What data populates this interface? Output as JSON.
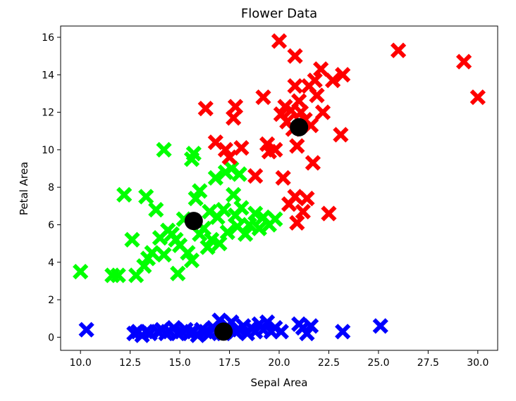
{
  "chart_data": {
    "type": "scatter",
    "title": "Flower Data",
    "xlabel": "Sepal Area",
    "ylabel": "Petal Area",
    "xlim": [
      9.0,
      31.0
    ],
    "ylim": [
      -0.7,
      16.6
    ],
    "grid": false,
    "x_ticks": [
      10.0,
      12.5,
      15.0,
      17.5,
      20.0,
      22.5,
      25.0,
      27.5,
      30.0
    ],
    "x_tick_labels": [
      "10.0",
      "12.5",
      "15.0",
      "17.5",
      "20.0",
      "22.5",
      "25.0",
      "27.5",
      "30.0"
    ],
    "y_ticks": [
      0,
      2,
      4,
      6,
      8,
      10,
      12,
      14,
      16
    ],
    "y_tick_labels": [
      "0",
      "2",
      "4",
      "6",
      "8",
      "10",
      "12",
      "14",
      "16"
    ],
    "colors": {
      "red": "#ff0000",
      "green": "#00ff00",
      "blue": "#0000ff",
      "centroid": "#000000",
      "axes": "#000000"
    },
    "series": [
      {
        "marker": "x",
        "color": "#0000ff",
        "points": [
          [
            10.3,
            0.4
          ],
          [
            12.7,
            0.2
          ],
          [
            12.9,
            0.3
          ],
          [
            13.1,
            0.1
          ],
          [
            13.3,
            0.3
          ],
          [
            13.5,
            0.2
          ],
          [
            13.9,
            0.3
          ],
          [
            14.1,
            0.4
          ],
          [
            14.3,
            0.2
          ],
          [
            14.5,
            0.3
          ],
          [
            14.7,
            0.5
          ],
          [
            14.9,
            0.2
          ],
          [
            15.1,
            0.3
          ],
          [
            15.3,
            0.4
          ],
          [
            15.5,
            0.2
          ],
          [
            15.7,
            0.3
          ],
          [
            15.9,
            0.1
          ],
          [
            16.1,
            0.4
          ],
          [
            16.3,
            0.3
          ],
          [
            16.5,
            0.2
          ],
          [
            16.7,
            0.5
          ],
          [
            16.9,
            0.3
          ],
          [
            17.0,
            0.9
          ],
          [
            17.2,
            0.2
          ],
          [
            17.4,
            0.6
          ],
          [
            17.6,
            0.8
          ],
          [
            17.8,
            0.3
          ],
          [
            18.0,
            0.4
          ],
          [
            18.2,
            0.6
          ],
          [
            18.4,
            0.2
          ],
          [
            18.6,
            0.5
          ],
          [
            18.8,
            0.3
          ],
          [
            19.0,
            0.7
          ],
          [
            19.2,
            0.4
          ],
          [
            19.4,
            0.8
          ],
          [
            19.6,
            0.3
          ],
          [
            19.8,
            0.5
          ],
          [
            20.1,
            0.3
          ],
          [
            21.0,
            0.7
          ],
          [
            21.2,
            0.5
          ],
          [
            21.4,
            0.2
          ],
          [
            21.6,
            0.6
          ],
          [
            23.2,
            0.3
          ],
          [
            25.1,
            0.6
          ]
        ]
      },
      {
        "marker": "x",
        "color": "#00ff00",
        "points": [
          [
            10.0,
            3.5
          ],
          [
            11.6,
            3.3
          ],
          [
            11.9,
            3.3
          ],
          [
            12.2,
            7.6
          ],
          [
            12.6,
            5.2
          ],
          [
            12.8,
            3.3
          ],
          [
            13.2,
            3.8
          ],
          [
            13.3,
            7.5
          ],
          [
            13.4,
            4.2
          ],
          [
            13.6,
            4.5
          ],
          [
            13.8,
            6.8
          ],
          [
            14.0,
            5.3
          ],
          [
            14.2,
            10.0
          ],
          [
            14.2,
            4.4
          ],
          [
            14.4,
            5.7
          ],
          [
            14.6,
            5.5
          ],
          [
            14.8,
            5.2
          ],
          [
            14.9,
            3.4
          ],
          [
            15.0,
            4.9
          ],
          [
            15.2,
            6.3
          ],
          [
            15.4,
            4.5
          ],
          [
            15.6,
            4.1
          ],
          [
            15.6,
            9.5
          ],
          [
            15.7,
            9.8
          ],
          [
            15.8,
            7.4
          ],
          [
            16.0,
            7.8
          ],
          [
            16.0,
            5.5
          ],
          [
            16.2,
            5.8
          ],
          [
            16.4,
            4.8
          ],
          [
            16.5,
            6.7
          ],
          [
            16.6,
            5.2
          ],
          [
            16.8,
            8.5
          ],
          [
            16.9,
            6.4
          ],
          [
            17.0,
            5.0
          ],
          [
            17.2,
            6.8
          ],
          [
            17.3,
            8.8
          ],
          [
            17.4,
            5.6
          ],
          [
            17.6,
            9.0
          ],
          [
            17.7,
            7.6
          ],
          [
            17.8,
            6.5
          ],
          [
            17.9,
            5.9
          ],
          [
            18.0,
            8.7
          ],
          [
            18.1,
            6.9
          ],
          [
            18.3,
            5.5
          ],
          [
            18.5,
            6.0
          ],
          [
            18.8,
            6.6
          ],
          [
            19.0,
            5.8
          ],
          [
            19.2,
            6.4
          ],
          [
            19.5,
            6.0
          ],
          [
            19.8,
            6.3
          ]
        ]
      },
      {
        "marker": "x",
        "color": "#ff0000",
        "points": [
          [
            16.3,
            12.2
          ],
          [
            16.8,
            10.4
          ],
          [
            17.3,
            10.0
          ],
          [
            17.5,
            9.6
          ],
          [
            17.7,
            11.7
          ],
          [
            17.8,
            12.3
          ],
          [
            18.1,
            10.1
          ],
          [
            18.8,
            8.6
          ],
          [
            19.2,
            12.8
          ],
          [
            19.4,
            10.3
          ],
          [
            19.5,
            9.9
          ],
          [
            19.8,
            10.0
          ],
          [
            20.0,
            15.8
          ],
          [
            20.1,
            11.9
          ],
          [
            20.2,
            8.5
          ],
          [
            20.3,
            12.3
          ],
          [
            20.4,
            11.5
          ],
          [
            20.5,
            7.1
          ],
          [
            20.6,
            12.1
          ],
          [
            20.7,
            11.1
          ],
          [
            20.8,
            15.0
          ],
          [
            20.8,
            13.4
          ],
          [
            20.8,
            7.5
          ],
          [
            20.9,
            10.2
          ],
          [
            20.9,
            6.1
          ],
          [
            21.0,
            12.6
          ],
          [
            21.1,
            12.0
          ],
          [
            21.2,
            6.7
          ],
          [
            21.3,
            11.6
          ],
          [
            21.4,
            7.4
          ],
          [
            21.5,
            13.4
          ],
          [
            21.6,
            11.3
          ],
          [
            21.7,
            9.3
          ],
          [
            21.8,
            13.7
          ],
          [
            21.9,
            12.9
          ],
          [
            22.1,
            14.3
          ],
          [
            22.2,
            12.0
          ],
          [
            22.5,
            6.6
          ],
          [
            22.7,
            13.7
          ],
          [
            23.1,
            10.8
          ],
          [
            23.2,
            14.0
          ],
          [
            26.0,
            15.3
          ],
          [
            29.3,
            14.7
          ],
          [
            30.0,
            12.8
          ]
        ]
      },
      {
        "marker": "o",
        "color": "#000000",
        "points": [
          [
            21.0,
            11.2
          ],
          [
            15.7,
            6.2
          ],
          [
            17.2,
            0.3
          ]
        ]
      }
    ]
  }
}
